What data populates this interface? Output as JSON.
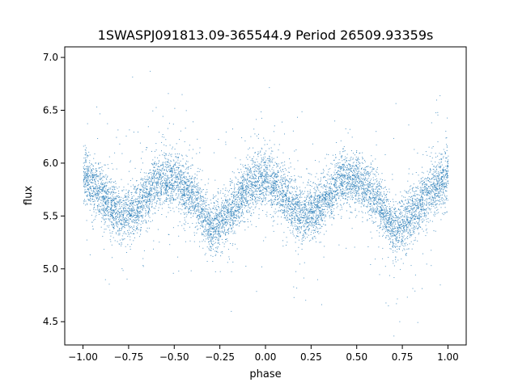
{
  "chart_data": {
    "type": "scatter",
    "title": "1SWASPJ091813.09-365544.9 Period 26509.93359s",
    "xlabel": "phase",
    "ylabel": "flux",
    "xlim": [
      -1.1,
      1.1
    ],
    "ylim": [
      4.28,
      7.1
    ],
    "xticks": [
      -1.0,
      -0.75,
      -0.5,
      -0.25,
      0.0,
      0.25,
      0.5,
      0.75,
      1.0
    ],
    "xtick_labels": [
      "−1.00",
      "−0.75",
      "−0.50",
      "−0.25",
      "0.00",
      "0.25",
      "0.50",
      "0.75",
      "1.00"
    ],
    "yticks": [
      4.5,
      5.0,
      5.5,
      6.0,
      6.5,
      7.0
    ],
    "ytick_labels": [
      "4.5",
      "5.0",
      "5.5",
      "6.0",
      "6.5",
      "7.0"
    ],
    "grid": false,
    "legend": "none",
    "marker_color": "#1f77b4",
    "profile": {
      "x": [
        -1.0,
        -0.9,
        -0.8,
        -0.7,
        -0.6,
        -0.5,
        -0.4,
        -0.3,
        -0.2,
        -0.1,
        0.0,
        0.1,
        0.2,
        0.3,
        0.4,
        0.5,
        0.6,
        0.7,
        0.8,
        0.9,
        1.0
      ],
      "y": [
        5.88,
        5.72,
        5.5,
        5.6,
        5.84,
        5.84,
        5.7,
        5.38,
        5.52,
        5.76,
        5.87,
        5.72,
        5.5,
        5.6,
        5.84,
        5.84,
        5.7,
        5.38,
        5.52,
        5.76,
        5.88
      ]
    },
    "point_count": 9000,
    "scatter_sigma": 0.13
  }
}
